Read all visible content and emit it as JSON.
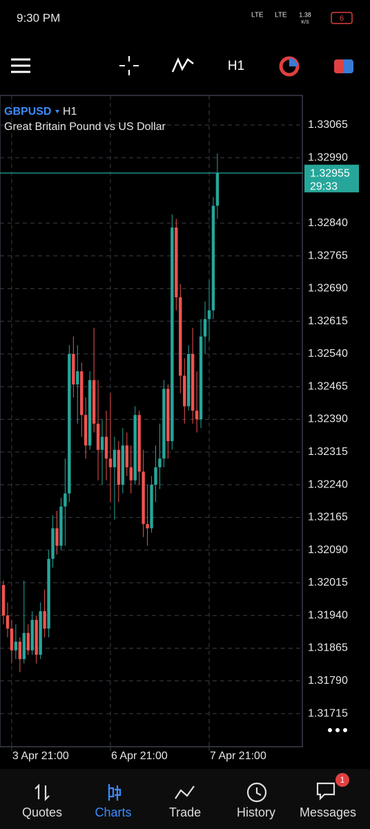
{
  "status_bar": {
    "time": "9:30 PM",
    "network_1": "LTE",
    "network_2": "LTE",
    "speed_value": "1.38",
    "speed_unit": "K/S",
    "battery": "6"
  },
  "toolbar": {
    "timeframe": "H1"
  },
  "chart_data": {
    "type": "candlestick",
    "symbol": "GBPUSD",
    "timeframe": "H1",
    "subtitle": "Great Britain Pound vs US Dollar",
    "categories": [
      null,
      null,
      "3 Apr 21:00",
      null,
      null,
      null,
      null,
      null,
      null,
      null,
      null,
      null,
      null,
      null,
      null,
      null,
      null,
      null,
      null,
      null,
      null,
      null,
      null,
      null,
      null,
      null,
      "6 Apr 21:00",
      null,
      null,
      null,
      null,
      null,
      null,
      null,
      null,
      null,
      null,
      null,
      null,
      null,
      null,
      null,
      null,
      null,
      null,
      null,
      null,
      null,
      null,
      null,
      "7 Apr 21:00",
      null,
      null
    ],
    "open": [
      1.3201,
      1.3194,
      1.3191,
      1.3186,
      1.3188,
      1.3184,
      1.319,
      1.3186,
      1.3193,
      1.3185,
      1.3195,
      1.3191,
      1.3207,
      1.3214,
      1.321,
      1.3219,
      1.3222,
      1.3254,
      1.3247,
      1.325,
      1.324,
      1.3233,
      1.3248,
      1.3238,
      1.3232,
      1.3235,
      1.323,
      1.3228,
      1.3232,
      1.3224,
      1.3233,
      1.3228,
      1.3225,
      1.324,
      1.3227,
      1.3215,
      1.3214,
      1.3224,
      1.3228,
      1.323,
      1.3246,
      1.3234,
      1.3283,
      1.3267,
      1.3249,
      1.3242,
      1.3254,
      1.3241,
      1.3239,
      1.3258,
      1.3262,
      1.3264,
      1.3288
    ],
    "high": [
      1.3202,
      1.3197,
      1.3193,
      1.3192,
      1.3189,
      1.3202,
      1.3192,
      1.3195,
      1.3194,
      1.3197,
      1.32,
      1.3209,
      1.3217,
      1.3218,
      1.3221,
      1.323,
      1.3256,
      1.3258,
      1.3256,
      1.3252,
      1.3244,
      1.325,
      1.326,
      1.3248,
      1.3239,
      1.3241,
      1.3245,
      1.3235,
      1.3234,
      1.3237,
      1.3236,
      1.3233,
      1.3242,
      1.3241,
      1.3232,
      1.3224,
      1.3226,
      1.3233,
      1.3238,
      1.3248,
      1.3247,
      1.3286,
      1.3285,
      1.327,
      1.3253,
      1.3256,
      1.326,
      1.325,
      1.3262,
      1.3266,
      1.3271,
      1.329,
      1.33
    ],
    "low": [
      1.3192,
      1.3189,
      1.3183,
      1.3184,
      1.3181,
      1.3183,
      1.3185,
      1.3185,
      1.3183,
      1.3184,
      1.3189,
      1.3189,
      1.3205,
      1.3208,
      1.3209,
      1.321,
      1.322,
      1.3244,
      1.3238,
      1.3235,
      1.323,
      1.3232,
      1.3236,
      1.3225,
      1.3224,
      1.3225,
      1.322,
      1.3216,
      1.322,
      1.3222,
      1.3226,
      1.3222,
      1.3224,
      1.3224,
      1.3212,
      1.321,
      1.3213,
      1.322,
      1.3223,
      1.3228,
      1.323,
      1.3232,
      1.3264,
      1.3245,
      1.3238,
      1.3241,
      1.3238,
      1.3236,
      1.3237,
      1.3254,
      1.3257,
      1.3262,
      1.3285
    ],
    "close": [
      1.3194,
      1.3191,
      1.3186,
      1.3188,
      1.3184,
      1.319,
      1.3186,
      1.3193,
      1.3185,
      1.3195,
      1.3191,
      1.3207,
      1.3214,
      1.321,
      1.3219,
      1.3222,
      1.3254,
      1.3247,
      1.325,
      1.324,
      1.3233,
      1.3248,
      1.3238,
      1.3232,
      1.3235,
      1.323,
      1.3228,
      1.3232,
      1.3224,
      1.3233,
      1.3228,
      1.3225,
      1.324,
      1.3227,
      1.3215,
      1.3214,
      1.3224,
      1.3228,
      1.323,
      1.3246,
      1.3234,
      1.3283,
      1.3267,
      1.3249,
      1.3242,
      1.3254,
      1.3241,
      1.3239,
      1.3258,
      1.3262,
      1.3264,
      1.3288,
      1.32955
    ],
    "up_color": "#26a69a",
    "down_color": "#ef5350",
    "current_price": 1.32955,
    "countdown": "29:33",
    "ylim": [
      1.31639,
      1.33133
    ],
    "yticks": [
      1.33065,
      {
        "value": 1.3299,
        "label": "1.32990"
      },
      1.32955,
      {
        "value": 1.3284,
        "label": "1.32840"
      },
      1.32765,
      {
        "value": 1.3269,
        "label": "1.32690"
      },
      1.32615,
      {
        "value": 1.3254,
        "label": "1.32540"
      },
      1.32465,
      {
        "value": 1.3239,
        "label": "1.32390"
      },
      1.32315,
      {
        "value": 1.3224,
        "label": "1.32240"
      },
      1.32165,
      {
        "value": 1.3209,
        "label": "1.32090"
      },
      1.32015,
      {
        "value": 1.3194,
        "label": "1.31940"
      },
      1.31865,
      {
        "value": 1.3179,
        "label": "1.31790"
      },
      1.31715
    ],
    "grid": true
  },
  "nav": {
    "items": [
      "Quotes",
      "Charts",
      "Trade",
      "History",
      "Messages"
    ],
    "active": "Charts",
    "messages_badge": "1"
  }
}
